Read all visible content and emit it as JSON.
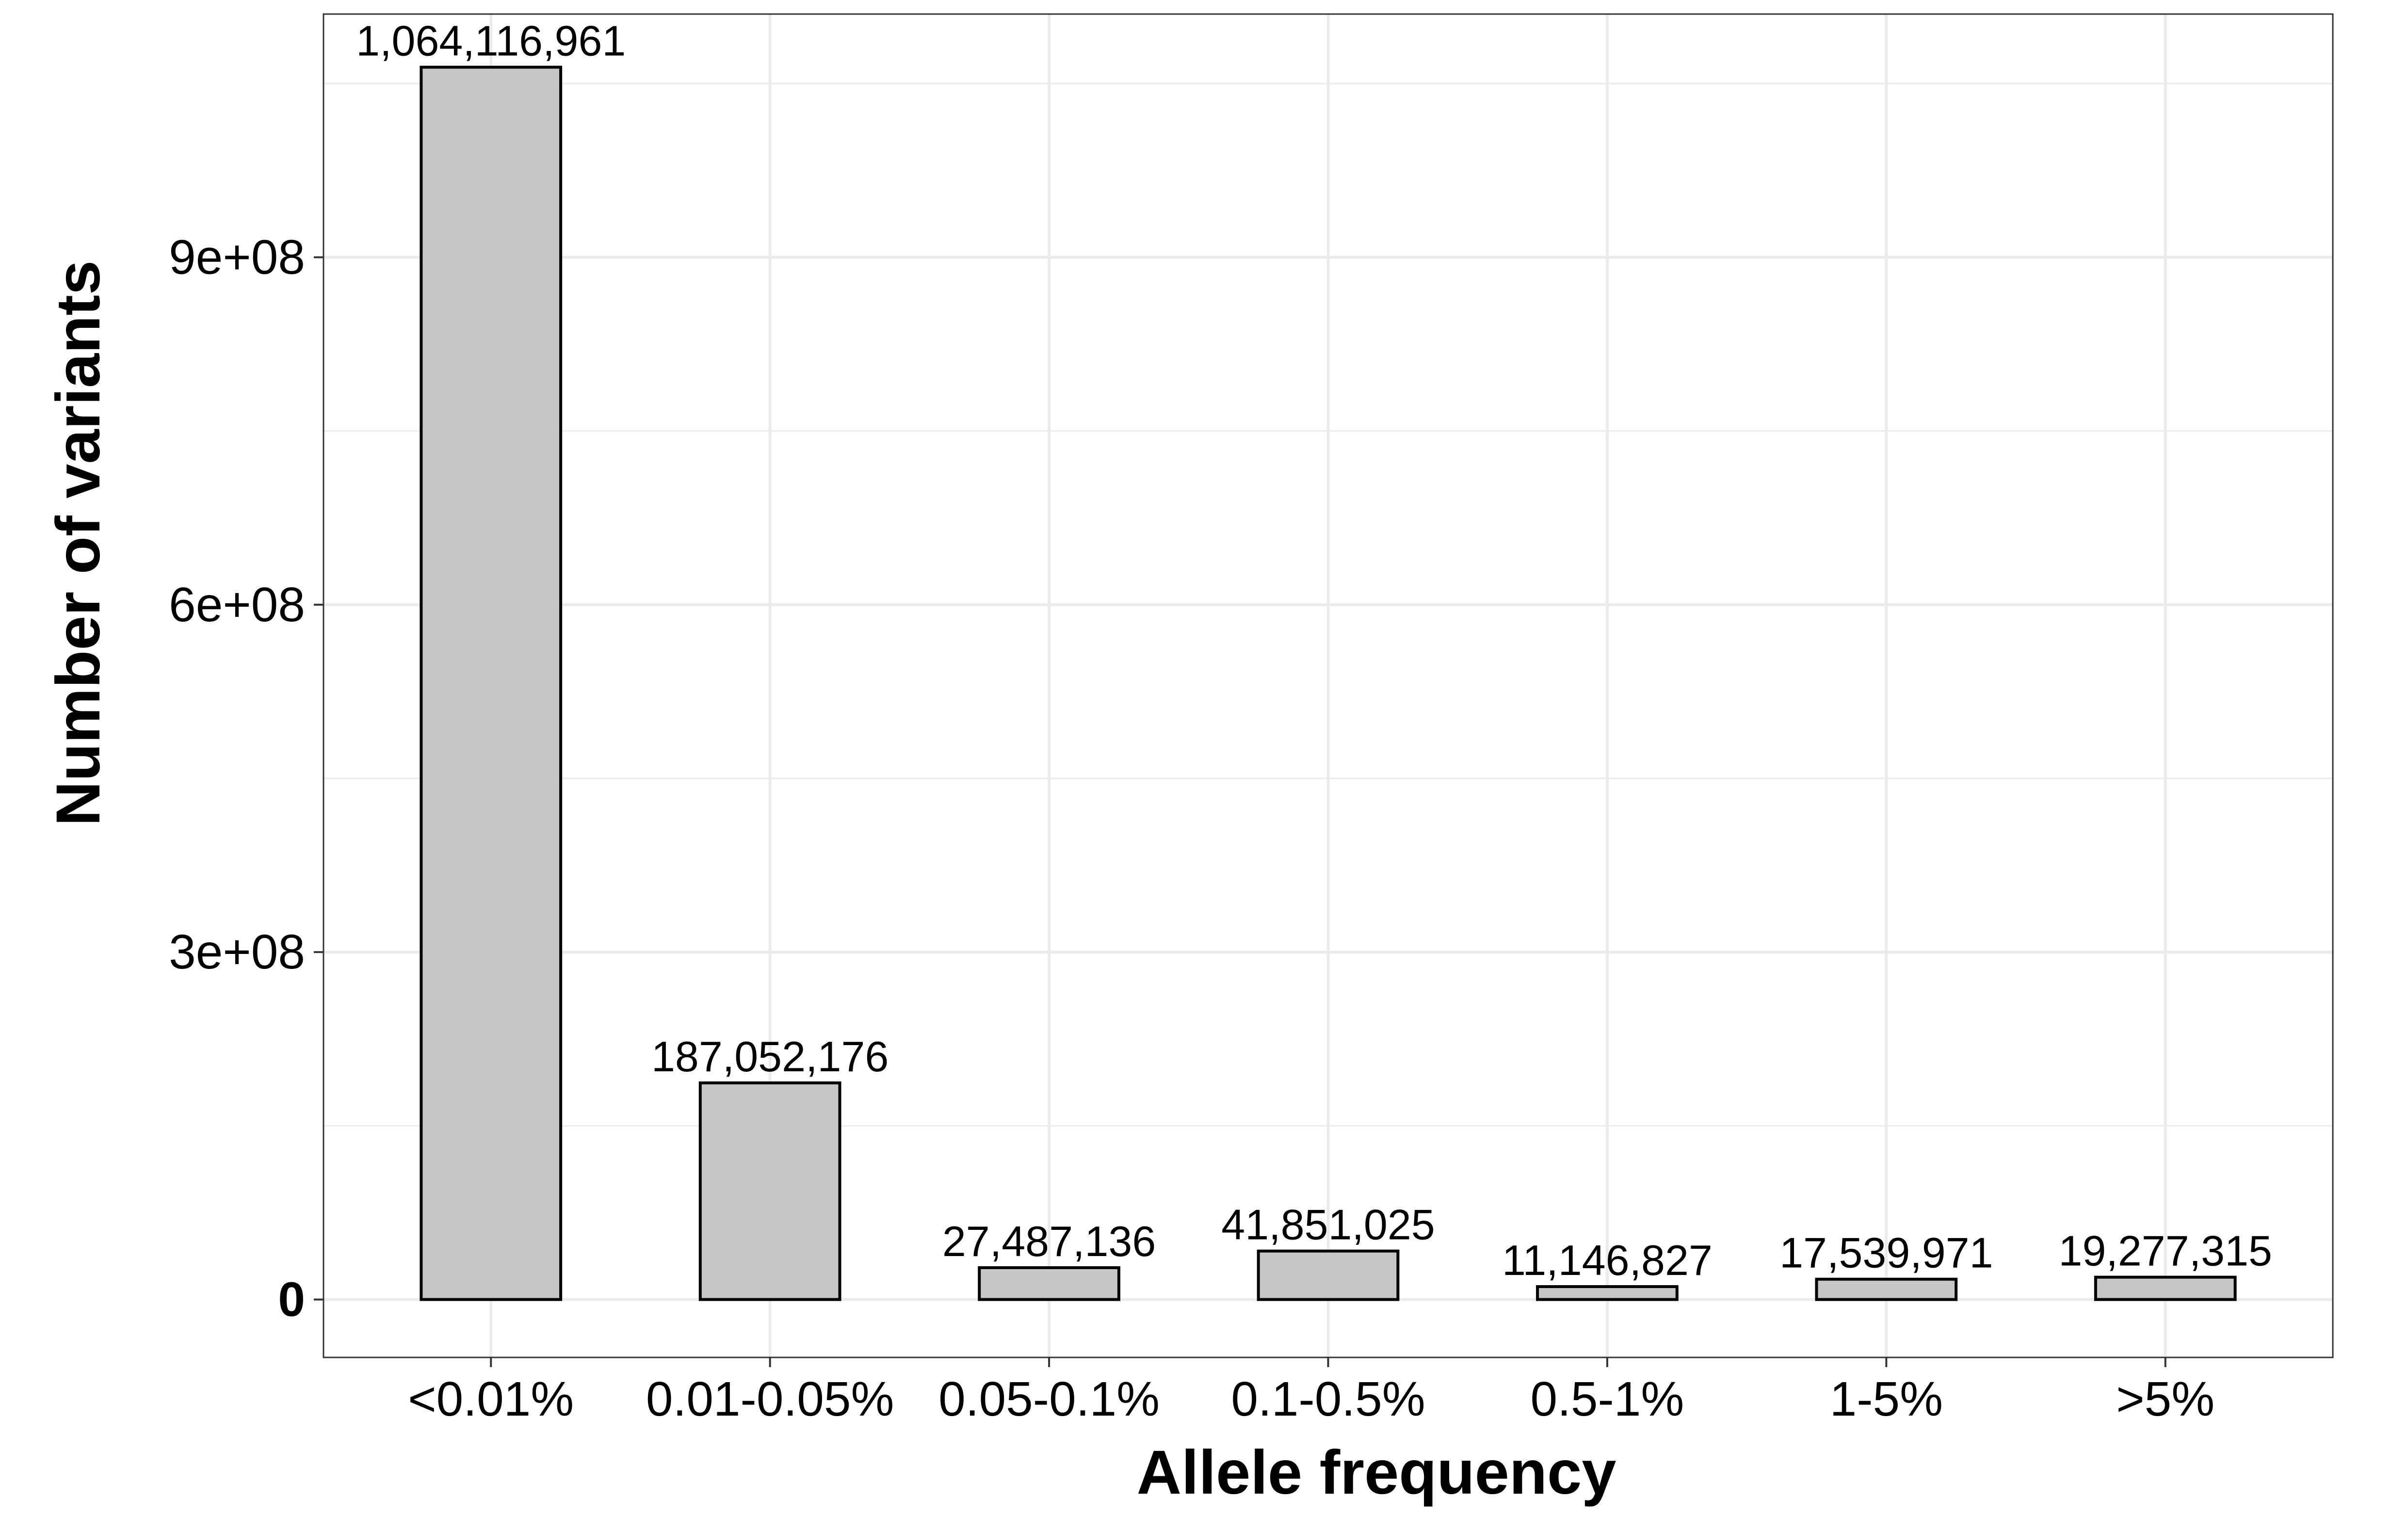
{
  "chart_data": {
    "type": "bar",
    "title": "",
    "xlabel": "Allele frequency",
    "ylabel": "Number of variants",
    "categories": [
      "<0.01%",
      "0.01-0.05%",
      "0.05-0.1%",
      "0.1-0.5%",
      "0.5-1%",
      "1-5%",
      ">5%"
    ],
    "values": [
      1064116961,
      187052176,
      27487136,
      41851025,
      11146827,
      17539971,
      19277315
    ],
    "value_labels": [
      "1,064,116,961",
      "187,052,176",
      "27,487,136",
      "41,851,025",
      "11,146,827",
      "17,539,971",
      "19,277,315"
    ],
    "yticks": [
      0,
      300000000,
      600000000,
      900000000
    ],
    "ytick_labels": [
      "0",
      "3e+08",
      "6e+08",
      "9e+08"
    ],
    "ylim": [
      -50000000,
      1110000000
    ],
    "grid": true,
    "legend": "none",
    "bar_fill": "#c6c5c8",
    "bar_stroke": "#000000",
    "grid_color": "#ebebeb",
    "panel_border": "#333333"
  }
}
